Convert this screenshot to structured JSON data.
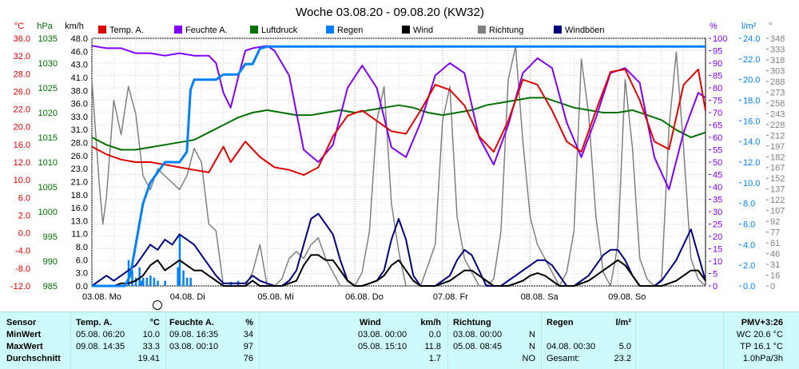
{
  "chart_data": {
    "type": "line",
    "title": "Woche 03.08.20 - 09.08.20 (KW32)",
    "x_range_hours": [
      0,
      168
    ],
    "x_ticks": [
      {
        "label": "03.08.  Mo",
        "h": 0
      },
      {
        "label": "04.08.  Di",
        "h": 24
      },
      {
        "label": "05.08.  Mi",
        "h": 48
      },
      {
        "label": "06.08.  Do",
        "h": 72
      },
      {
        "label": "07.08.  Fr",
        "h": 96
      },
      {
        "label": "08.08.  Sa",
        "h": 120
      },
      {
        "label": "09.08.  So",
        "h": 144
      }
    ],
    "axes": {
      "temp": {
        "unit": "°C",
        "ticks": [
          "36.0",
          "32.0",
          "28.0",
          "26.0",
          "22.0",
          "20.0",
          "16.0",
          "12.0",
          "10.0",
          "6.0",
          "2.0",
          "0.0",
          "-4.0",
          "-8.0",
          "-12.0"
        ],
        "ylim": [
          -12,
          36
        ],
        "color": "#e00000"
      },
      "pressure": {
        "unit": "hPa",
        "ticks": [
          "1035",
          "1030",
          "1025",
          "1020",
          "1015",
          "1010",
          "1005",
          "1000",
          "995",
          "990",
          "985"
        ],
        "ylim": [
          985,
          1035
        ],
        "color": "#007000"
      },
      "wind": {
        "unit": "km/h",
        "ticks": [
          "48.0",
          "46.0",
          "43.0",
          "41.0",
          "38.0",
          "36.0",
          "33.0",
          "31.0",
          "28.0",
          "26.0",
          "23.0",
          "21.0",
          "18.0",
          "16.0",
          "13.0",
          "11.0",
          "8.0",
          "6.0",
          "3.0",
          "0.0"
        ],
        "ylim": [
          0,
          48
        ],
        "color": "#000000"
      },
      "humidity": {
        "unit": "%",
        "ticks": [
          "100",
          "95",
          "90",
          "85",
          "80",
          "75",
          "70",
          "65",
          "60",
          "55",
          "50",
          "45",
          "40",
          "35",
          "30",
          "25",
          "20",
          "15",
          "10",
          "5",
          "0"
        ],
        "ylim": [
          0,
          100
        ],
        "color": "#8000ff"
      },
      "rain": {
        "unit": "l/m²",
        "ticks": [
          "24.0",
          "22.0",
          "20.0",
          "18.0",
          "16.0",
          "14.0",
          "12.0",
          "10.0",
          "8.0",
          "6.0",
          "4.0",
          "2.0",
          "0.0"
        ],
        "ylim": [
          0,
          24
        ],
        "color": "#0080ff"
      },
      "direction": {
        "unit": "°",
        "ticks": [
          "348",
          "333",
          "318",
          "303",
          "288",
          "273",
          "258",
          "243",
          "228",
          "212",
          "197",
          "182",
          "167",
          "152",
          "137",
          "122",
          "107",
          "92",
          "77",
          "61",
          "46",
          "31",
          "16",
          "0"
        ],
        "ylim": [
          0,
          360
        ],
        "color": "#808080"
      }
    },
    "legend": [
      {
        "name": "Temp. A.",
        "color": "#e00000"
      },
      {
        "name": "Feuchte A.",
        "color": "#8000ff"
      },
      {
        "name": "Luftdruck",
        "color": "#007000"
      },
      {
        "name": "Regen",
        "color": "#0080ff"
      },
      {
        "name": "Wind",
        "color": "#000000"
      },
      {
        "name": "Richtung",
        "color": "#808080"
      },
      {
        "name": "Windböen",
        "color": "#000080"
      }
    ],
    "series": [
      {
        "name": "Temp. A.",
        "axis": "temp",
        "x": [
          0,
          4,
          8,
          12,
          16,
          20,
          24,
          28,
          32,
          36,
          38,
          42,
          46,
          50,
          54,
          58,
          62,
          66,
          70,
          74,
          78,
          82,
          86,
          90,
          94,
          98,
          102,
          106,
          110,
          114,
          118,
          122,
          126,
          130,
          134,
          138,
          142,
          146,
          150,
          154,
          158,
          162,
          166,
          168
        ],
        "y": [
          15,
          13.5,
          12.5,
          12,
          12,
          11.5,
          11,
          10.5,
          10,
          15,
          12,
          16,
          13,
          11,
          10.5,
          9.5,
          11,
          17,
          21,
          22,
          20,
          18,
          17.5,
          22,
          27,
          26,
          23,
          17,
          14,
          20,
          28,
          27,
          22,
          16,
          14,
          22,
          29.5,
          30,
          24,
          16,
          14.5,
          27,
          30,
          22
        ]
      },
      {
        "name": "Feuchte A.",
        "axis": "humidity",
        "x": [
          0,
          4,
          8,
          12,
          16,
          20,
          24,
          28,
          32,
          34,
          36,
          38,
          40,
          42,
          44,
          48,
          50,
          54,
          56,
          58,
          62,
          66,
          70,
          74,
          78,
          82,
          86,
          90,
          94,
          98,
          102,
          106,
          110,
          114,
          118,
          122,
          126,
          130,
          134,
          138,
          142,
          146,
          150,
          154,
          158,
          162,
          166,
          168
        ],
        "y": [
          97,
          96,
          96,
          94,
          94,
          93,
          94,
          93,
          93,
          90,
          78,
          72,
          84,
          95,
          96,
          97,
          95,
          85,
          70,
          55,
          50,
          57,
          80,
          89,
          80,
          56,
          52,
          66,
          85,
          90,
          86,
          60,
          49,
          65,
          86,
          92,
          88,
          66,
          52,
          68,
          86,
          88,
          82,
          52,
          39,
          62,
          78,
          76
        ]
      },
      {
        "name": "Luftdruck",
        "axis": "pressure",
        "x": [
          0,
          4,
          8,
          12,
          16,
          20,
          24,
          28,
          32,
          36,
          40,
          44,
          48,
          52,
          56,
          60,
          64,
          68,
          72,
          76,
          80,
          84,
          88,
          92,
          96,
          100,
          104,
          108,
          112,
          116,
          120,
          124,
          128,
          132,
          136,
          140,
          144,
          148,
          152,
          156,
          160,
          164,
          168
        ],
        "y": [
          1015,
          1013.5,
          1012.5,
          1012.5,
          1013,
          1013.5,
          1014,
          1014.5,
          1016,
          1017.5,
          1019,
          1020,
          1020.5,
          1020,
          1019.5,
          1019.5,
          1020,
          1020.5,
          1020,
          1020.5,
          1021,
          1021.5,
          1021,
          1020,
          1019.5,
          1020,
          1020.5,
          1021.5,
          1022,
          1022.5,
          1023,
          1023,
          1022,
          1021,
          1020.5,
          1020,
          1020,
          1020.5,
          1019.5,
          1018.5,
          1016.5,
          1015,
          1016
        ]
      },
      {
        "name": "Regen",
        "axis": "rain",
        "x": [
          0,
          5,
          9,
          10.5,
          12,
          14,
          16,
          18,
          20,
          21,
          22,
          24,
          26,
          27,
          28,
          30,
          32,
          34,
          36,
          38,
          40,
          42,
          44,
          46,
          48,
          168
        ],
        "y": [
          0,
          0,
          0,
          1,
          4,
          8,
          10,
          11,
          12,
          12,
          12,
          12,
          13,
          19,
          20,
          20,
          20,
          20,
          20.5,
          20.5,
          20.5,
          21.5,
          21.5,
          23,
          23.2,
          23.2
        ]
      },
      {
        "name": "Wind",
        "axis": "wind",
        "x": [
          0,
          4,
          6,
          8,
          10,
          12,
          14,
          16,
          18,
          20,
          22,
          24,
          26,
          28,
          30,
          32,
          34,
          36,
          38,
          40,
          42,
          44,
          46,
          48,
          50,
          52,
          54,
          56,
          58,
          60,
          62,
          64,
          66,
          68,
          70,
          72,
          74,
          76,
          78,
          80,
          82,
          84,
          86,
          88,
          90,
          92,
          94,
          96,
          98,
          100,
          102,
          104,
          106,
          108,
          110,
          112,
          114,
          116,
          118,
          120,
          122,
          124,
          126,
          128,
          130,
          132,
          134,
          136,
          138,
          140,
          142,
          144,
          146,
          148,
          150,
          152,
          154,
          156,
          158,
          160,
          162,
          164,
          166,
          168
        ],
        "y": [
          0,
          0,
          0,
          0.5,
          0.5,
          1,
          2,
          4,
          5,
          3,
          4,
          5,
          4,
          3,
          3,
          2,
          1,
          0,
          0,
          0,
          0,
          1,
          0,
          0,
          0,
          0,
          0.5,
          1,
          4,
          6,
          6,
          5,
          5,
          3,
          1,
          0,
          0,
          0.5,
          1,
          2,
          4,
          5,
          3,
          1,
          0,
          0,
          0,
          0.5,
          1,
          2,
          3,
          3,
          2,
          1,
          0,
          0,
          0,
          0.5,
          1,
          2,
          2.5,
          2,
          1,
          0,
          0,
          0,
          0.5,
          1,
          2,
          3,
          4,
          5,
          4,
          2,
          0,
          0,
          0,
          0,
          0.5,
          1,
          2,
          3,
          3,
          1
        ]
      },
      {
        "name": "Windböen",
        "axis": "wind",
        "x": [
          0,
          2,
          4,
          6,
          8,
          10,
          12,
          14,
          16,
          18,
          20,
          22,
          24,
          26,
          28,
          30,
          32,
          34,
          36,
          38,
          40,
          42,
          44,
          46,
          48,
          50,
          52,
          54,
          56,
          58,
          60,
          62,
          64,
          66,
          68,
          70,
          72,
          74,
          76,
          78,
          80,
          82,
          84,
          86,
          88,
          90,
          92,
          94,
          96,
          98,
          100,
          102,
          104,
          106,
          108,
          110,
          112,
          114,
          116,
          118,
          120,
          122,
          124,
          126,
          128,
          130,
          132,
          134,
          136,
          138,
          140,
          142,
          144,
          146,
          148,
          150,
          152,
          154,
          156,
          158,
          160,
          162,
          164,
          166,
          168
        ],
        "y": [
          0,
          1,
          2,
          1,
          2,
          3,
          4,
          6,
          8,
          7,
          9,
          8,
          10,
          9,
          8,
          6,
          4,
          2,
          0.5,
          0.5,
          0.5,
          0.5,
          2,
          1,
          0.5,
          0,
          0,
          1,
          3,
          8,
          13,
          14,
          12,
          10,
          5,
          1,
          0,
          0,
          0.5,
          1,
          3,
          9,
          13,
          9,
          2,
          0,
          0,
          0,
          1,
          2,
          5,
          7,
          6,
          3,
          0,
          0,
          0,
          1,
          2,
          3,
          4,
          5,
          5,
          4,
          2,
          0,
          0,
          1,
          2,
          4,
          6,
          7,
          7,
          5,
          2,
          0,
          0,
          0,
          1,
          3,
          5,
          8,
          11,
          6,
          1
        ]
      },
      {
        "name": "Richtung",
        "axis": "direction",
        "x": [
          0,
          2,
          3,
          4,
          6,
          8,
          10,
          12,
          14,
          16,
          18,
          20,
          22,
          24,
          26,
          28,
          30,
          32,
          34,
          36,
          38,
          40,
          42,
          44,
          46,
          48,
          50,
          52,
          54,
          56,
          58,
          60,
          62,
          64,
          66,
          68,
          70,
          72,
          74,
          76,
          78,
          80,
          82,
          84,
          86,
          88,
          90,
          92,
          94,
          96,
          98,
          100,
          102,
          104,
          106,
          108,
          110,
          112,
          114,
          116,
          118,
          120,
          122,
          124,
          126,
          128,
          130,
          132,
          134,
          136,
          138,
          140,
          142,
          144,
          146,
          148,
          150,
          152,
          154,
          156,
          158,
          160,
          162,
          164,
          166,
          168
        ],
        "y": [
          300,
          150,
          90,
          130,
          270,
          220,
          290,
          250,
          160,
          140,
          170,
          160,
          150,
          140,
          160,
          200,
          180,
          90,
          80,
          0,
          0,
          0,
          0,
          20,
          60,
          0,
          0,
          10,
          40,
          50,
          40,
          60,
          70,
          40,
          20,
          0,
          0,
          0,
          20,
          80,
          240,
          290,
          120,
          50,
          0,
          0,
          0,
          30,
          60,
          240,
          290,
          100,
          40,
          20,
          0,
          0,
          10,
          80,
          300,
          348,
          210,
          100,
          60,
          40,
          20,
          0,
          20,
          80,
          330,
          250,
          100,
          20,
          0,
          60,
          300,
          200,
          40,
          10,
          0,
          10,
          230,
          340,
          200,
          40,
          10,
          0
        ]
      }
    ],
    "rain_bars": {
      "axis": "rain",
      "x": [
        10,
        11,
        12,
        13,
        13.5,
        14,
        15,
        16,
        17,
        18,
        20,
        23.5,
        24,
        25,
        26,
        27,
        38,
        40
      ],
      "y": [
        2.5,
        1.5,
        0.8,
        1.8,
        0.5,
        0.8,
        0.8,
        1.0,
        0.8,
        0.5,
        0.5,
        1.8,
        5.0,
        1.5,
        0.8,
        0.8,
        0.4,
        0.5
      ]
    }
  },
  "stats": {
    "headers": {
      "sensor": "Sensor",
      "temp": "Temp. A.",
      "temp_unit": "°C",
      "hum": "Feuchte A.",
      "hum_unit": "%",
      "wind": "Wind",
      "wind_unit": "km/h",
      "dir": "Richtung",
      "rain": "Regen",
      "rain_unit": "l/m²",
      "pmv": "PMV+3:26"
    },
    "rows": [
      {
        "label": "MinWert",
        "temp_time": "05.08.  06:20",
        "temp_val": "10.0",
        "hum_time": "09.08.  16:35",
        "hum_val": "34",
        "wind_time": "03.08.  00:00",
        "wind_val": "0.0",
        "dir_time": "03.08.  00:00",
        "dir_val": "N",
        "rain_time": "",
        "rain_val": "",
        "extra": "WC 20.6 °C"
      },
      {
        "label": "MaxWert",
        "temp_time": "09.08.  14:35",
        "temp_val": "33.3",
        "hum_time": "03.08.  00:10",
        "hum_val": "97",
        "wind_time": "05.08.  15:10",
        "wind_val": "11.8",
        "dir_time": "05.08.  08:45",
        "dir_val": "N",
        "rain_time": "04.08.  00:30",
        "rain_val": "5.0",
        "extra": "TP 16.1 °C"
      },
      {
        "label": "Durchschnitt",
        "temp_time": "",
        "temp_val": "19.41",
        "hum_time": "",
        "hum_val": "76",
        "wind_time": "",
        "wind_val": "1.7",
        "dir_time": "",
        "dir_val": "NO",
        "rain_time": "Gesamt:",
        "rain_val": "23.2",
        "extra": "1.0hPa/3h"
      }
    ]
  }
}
